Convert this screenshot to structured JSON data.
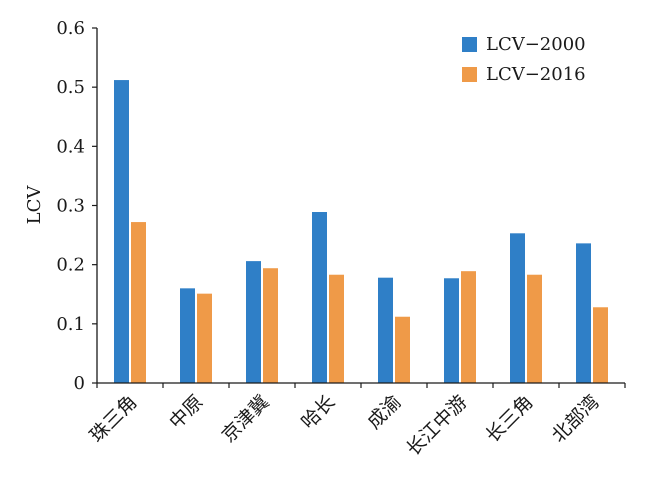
{
  "chart_data": {
    "type": "bar",
    "title": "",
    "xlabel": "",
    "ylabel": "LCV",
    "ylim": [
      0,
      0.6
    ],
    "yticks": [
      "0",
      "0.1",
      "0.2",
      "0.3",
      "0.4",
      "0.5",
      "0.6"
    ],
    "ytick_values": [
      0,
      0.1,
      0.2,
      0.3,
      0.4,
      0.5,
      0.6
    ],
    "grid": false,
    "legend_position": "top-right",
    "categories": [
      "珠三角",
      "中原",
      "京津冀",
      "哈长",
      "成渝",
      "长江中游",
      "长三角",
      "北部湾"
    ],
    "series": [
      {
        "name": "LCV−2000",
        "color": "#2f7fc7",
        "values": [
          0.512,
          0.16,
          0.206,
          0.289,
          0.178,
          0.177,
          0.253,
          0.236
        ]
      },
      {
        "name": "LCV−2016",
        "color": "#ef9a48",
        "values": [
          0.272,
          0.151,
          0.194,
          0.183,
          0.112,
          0.189,
          0.183,
          0.128
        ]
      }
    ]
  }
}
